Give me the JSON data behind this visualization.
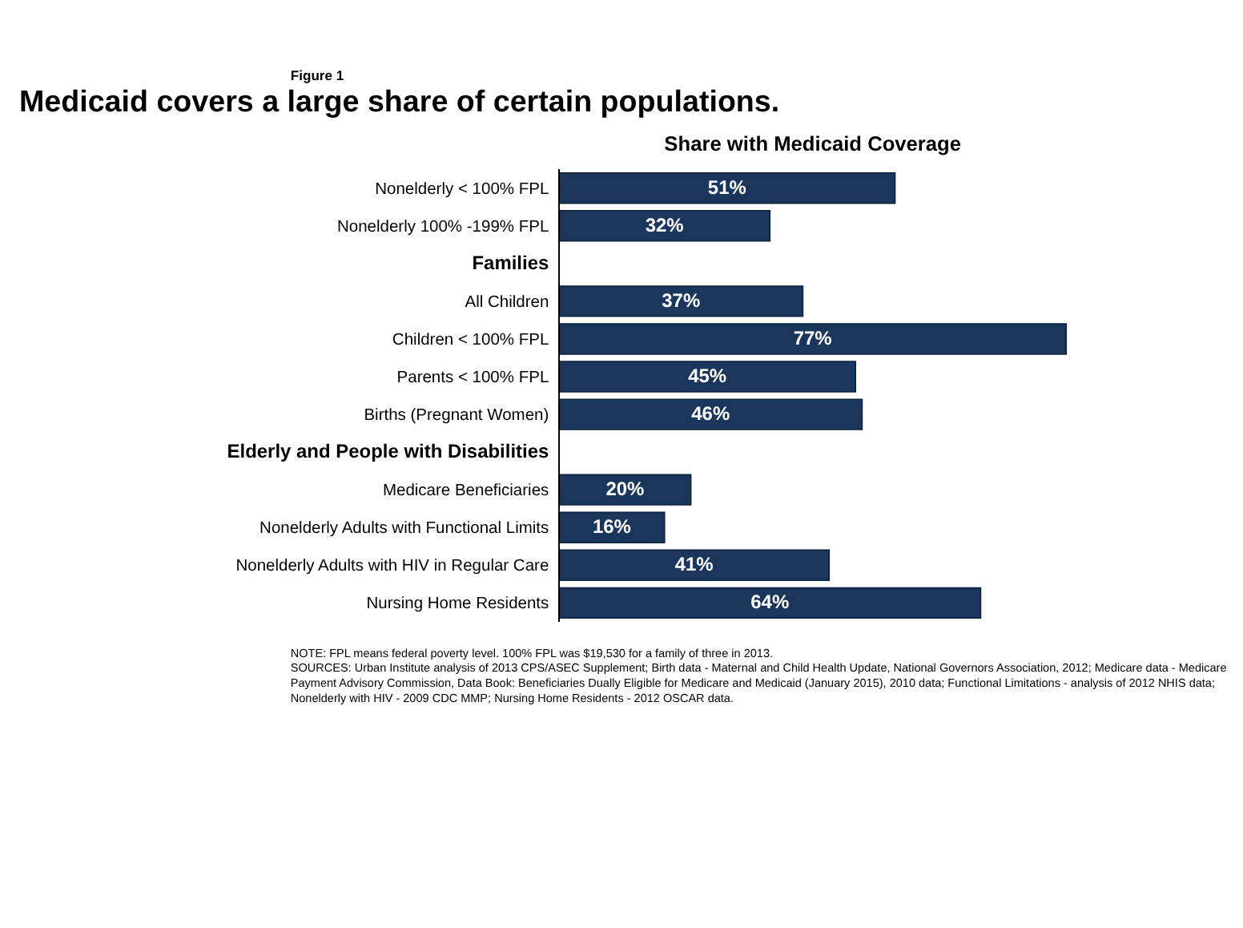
{
  "chart_data": {
    "type": "bar",
    "orientation": "horizontal",
    "title": "Medicaid covers a large share of certain populations.",
    "subtitle": "Share with Medicaid Coverage",
    "categories": [
      "Nonelderly < 100% FPL",
      "Nonelderly 100% -199% FPL",
      "Families",
      "All Children",
      "Children < 100% FPL",
      "Parents < 100% FPL",
      "Births (Pregnant Women)",
      "Elderly and People with Disabilities",
      "Medicare Beneficiaries",
      "Nonelderly Adults with Functional Limits",
      "Nonelderly Adults with HIV in Regular Care",
      "Nursing Home Residents"
    ],
    "values": [
      51,
      32,
      null,
      37,
      77,
      45,
      46,
      null,
      20,
      16,
      41,
      64
    ],
    "value_labels": [
      "51%",
      "32%",
      null,
      "37%",
      "77%",
      "45%",
      "46%",
      null,
      "20%",
      "16%",
      "41%",
      "64%"
    ],
    "color": "#1b365d",
    "annotations": [
      "Figure 1",
      "NOTE: FPL means federal poverty level. 100% FPL was $19,530 for a family of three in 2013.",
      "SOURCES: Urban Institute analysis of 2013 CPS/ASEC Supplement; Birth data - Maternal and Child Health Update, National Governors Association, 2012; Medicare data - Medicare Payment Advisory Commission, Data Book: Beneficiaries Dually Eligible for Medicare and Medicaid (January 2015), 2010 data; Functional Limitations - analysis of 2012 NHIS data; Nonelderly with HIV - 2009 CDC MMP; Nursing Home Residents - 2012 OSCAR data."
    ],
    "grid": false,
    "tick_labels": "y"
  }
}
